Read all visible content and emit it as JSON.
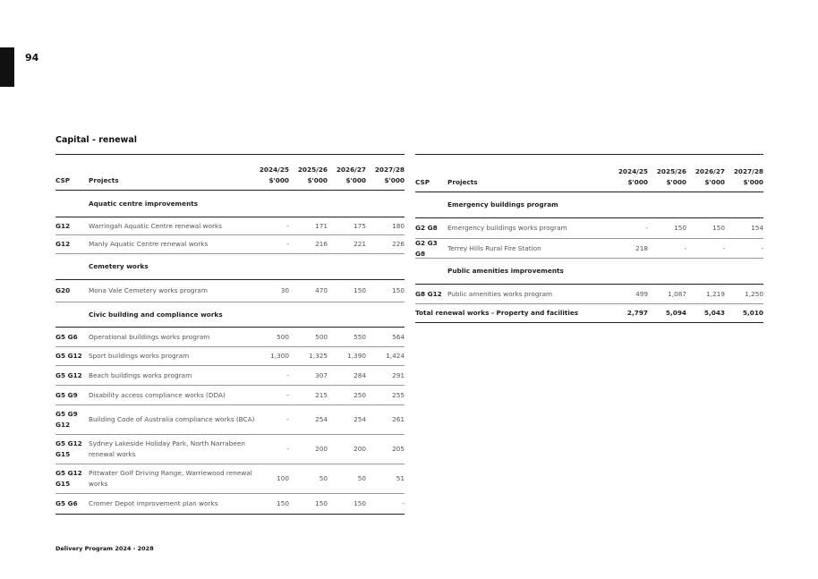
{
  "page_number": "94",
  "section_title": "Capital - renewal",
  "footer": "Delivery Program 2024 - 2028",
  "headers": {
    "csp": "CSP",
    "projects": "Projects",
    "years": [
      "2024/25\n$'000",
      "2025/26\n$'000",
      "2026/27\n$'000",
      "2027/28\n$'000"
    ]
  },
  "left_table": [
    {
      "type": "sec",
      "project": "Aquatic centre improvements"
    },
    {
      "type": "item",
      "csp": "G12",
      "project": "Warringah Aquatic Centre renewal works",
      "values": [
        "-",
        "171",
        "175",
        "180"
      ]
    },
    {
      "type": "item",
      "csp": "G12",
      "project": "Manly Aquatic Centre renewal works",
      "values": [
        "-",
        "216",
        "221",
        "226"
      ]
    },
    {
      "type": "sec",
      "project": "Cemetery works"
    },
    {
      "type": "item",
      "csp": "G20",
      "project": "Mona Vale Cemetery works program",
      "values": [
        "30",
        "470",
        "150",
        "150"
      ]
    },
    {
      "type": "sec",
      "project": "Civic building and compliance works"
    },
    {
      "type": "item",
      "csp": "G5 G6",
      "project": "Operational buildings works program",
      "values": [
        "500",
        "500",
        "550",
        "564"
      ]
    },
    {
      "type": "item",
      "csp": "G5 G12",
      "project": "Sport buildings works program",
      "values": [
        "1,300",
        "1,325",
        "1,390",
        "1,424"
      ]
    },
    {
      "type": "item",
      "csp": "G5 G12",
      "project": "Beach buildings works program",
      "values": [
        "-",
        "307",
        "284",
        "291"
      ]
    },
    {
      "type": "item",
      "csp": "G5 G9",
      "project": "Disability access compliance works (DDA)",
      "values": [
        "-",
        "215",
        "250",
        "255"
      ]
    },
    {
      "type": "item",
      "csp": "G5 G9 G12",
      "project": "Building Code of Australia compliance works (BCA)",
      "values": [
        "-",
        "254",
        "254",
        "261"
      ]
    },
    {
      "type": "item",
      "csp": "G5 G12 G15",
      "project": "Sydney Lakeside Holiday Park, North Narrabeen renewal works",
      "values": [
        "-",
        "200",
        "200",
        "205"
      ]
    },
    {
      "type": "item",
      "csp": "G5 G12 G15",
      "project": "Pittwater Golf Driving Range, Warriewood renewal works",
      "values": [
        "100",
        "50",
        "50",
        "51"
      ]
    },
    {
      "type": "item",
      "csp": "G5 G6",
      "project": "Cromer Depot improvement plan works",
      "values": [
        "150",
        "150",
        "150",
        "-"
      ]
    }
  ],
  "right_table": [
    {
      "type": "sec",
      "project": "Emergency buildings program"
    },
    {
      "type": "item",
      "csp": "G2 G8",
      "project": "Emergency buildings works program",
      "values": [
        "-",
        "150",
        "150",
        "154"
      ]
    },
    {
      "type": "item",
      "csp": "G2 G3 G8",
      "project": "Terrey Hills Rural Fire Station",
      "values": [
        "218",
        "-",
        "-",
        "-"
      ]
    },
    {
      "type": "sec",
      "project": "Public amenities improvements"
    },
    {
      "type": "item",
      "csp": "G8 G12",
      "project": "Public amenities works program",
      "values": [
        "499",
        "1,087",
        "1,219",
        "1,250"
      ]
    },
    {
      "type": "total",
      "project": "Total renewal works -  Property and facilities",
      "values": [
        "2,797",
        "5,094",
        "5,043",
        "5,010"
      ]
    }
  ]
}
